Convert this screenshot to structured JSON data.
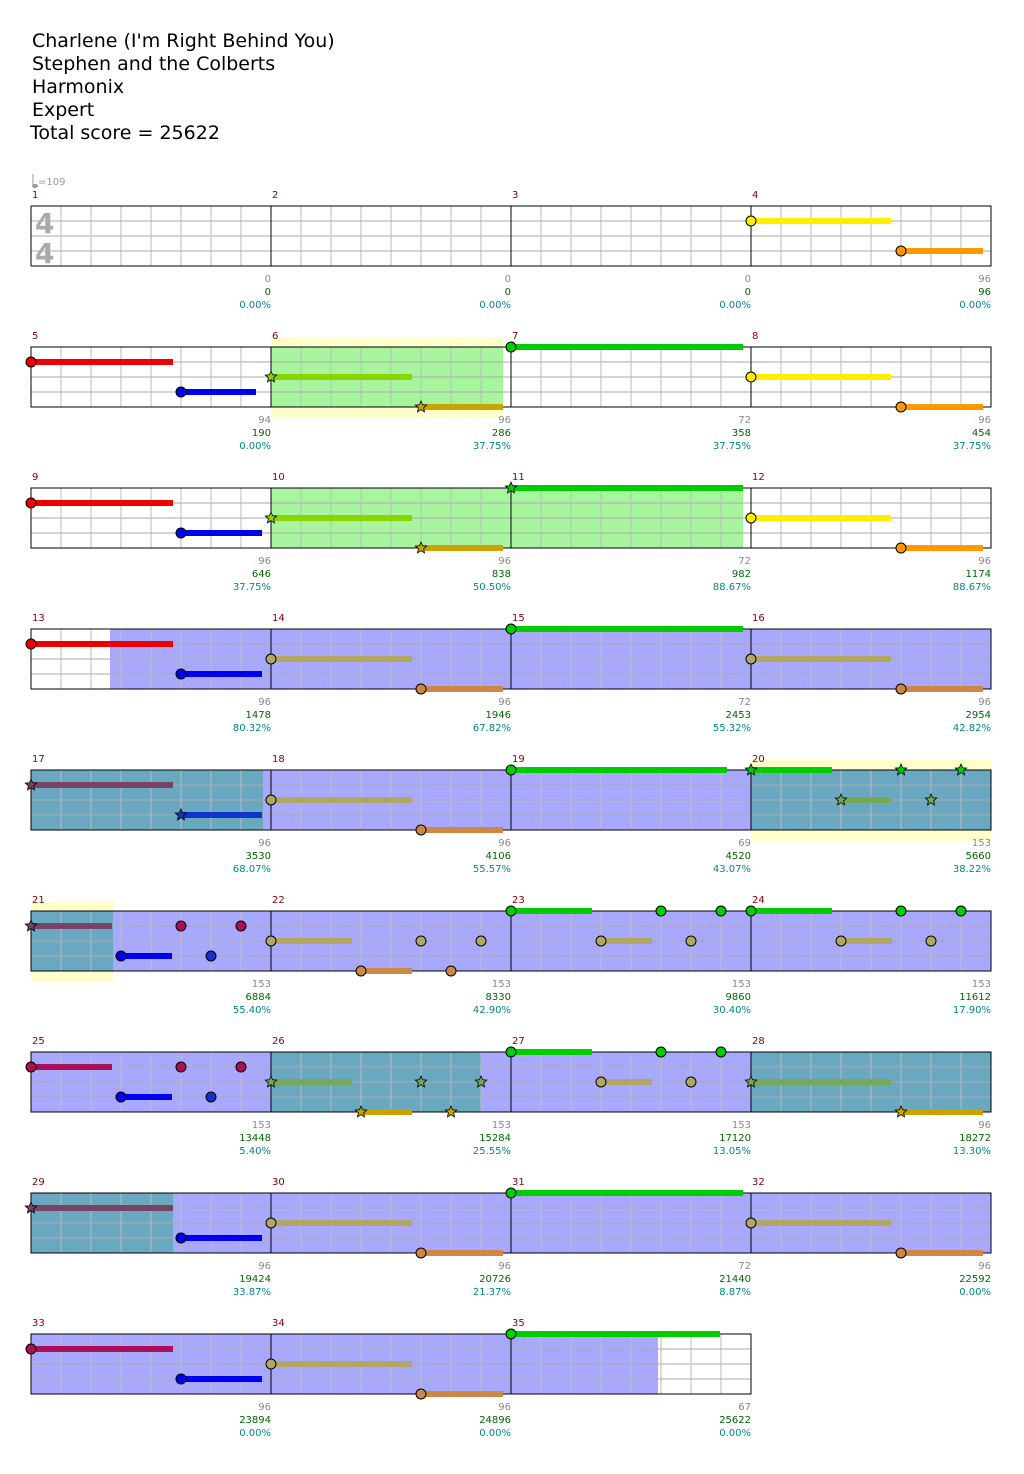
{
  "header": {
    "song": "Charlene (I'm Right Behind You)",
    "artist": "Stephen and the Colberts",
    "charter": "Harmonix",
    "difficulty": "Expert",
    "total_score": "Total score = 25622"
  },
  "tempo": "=109",
  "time_signature": {
    "top": "4",
    "bottom": "4"
  },
  "colors": {
    "green": "#00cc00",
    "red": "#ee0000",
    "yellow": "#ffee00",
    "blue": "#0000ee",
    "orange": "#ff9900",
    "overdrive": "#8bd400",
    "sp_phrase": "#a8f5a0",
    "sp_active": "#a8a8ff",
    "sp_both": "#6aa7c0",
    "measure_num": "#880000",
    "score_num": "#006600",
    "pct": "#008888",
    "beat_count": "#888888"
  },
  "chart_data": {
    "type": "table",
    "title": "Charlene (I'm Right Behind You)",
    "rows": [
      {
        "measures": [
          "1",
          "2",
          "3",
          "4"
        ],
        "beats": [
          "0",
          "0",
          "0",
          "96"
        ],
        "scores": [
          "0",
          "0",
          "0",
          "96"
        ],
        "pcts": [
          "0.00%",
          "0.00%",
          "0.00%",
          "0.00%"
        ]
      },
      {
        "measures": [
          "5",
          "6",
          "7",
          "8"
        ],
        "beats": [
          "94",
          "96",
          "72",
          "96"
        ],
        "scores": [
          "190",
          "286",
          "358",
          "454"
        ],
        "pcts": [
          "0.00%",
          "37.75%",
          "37.75%",
          "37.75%"
        ]
      },
      {
        "measures": [
          "9",
          "10",
          "11",
          "12"
        ],
        "beats": [
          "96",
          "96",
          "72",
          "96"
        ],
        "scores": [
          "646",
          "838",
          "982",
          "1174"
        ],
        "pcts": [
          "37.75%",
          "50.50%",
          "88.67%",
          "88.67%"
        ]
      },
      {
        "measures": [
          "13",
          "14",
          "15",
          "16"
        ],
        "beats": [
          "96",
          "96",
          "72",
          "96"
        ],
        "scores": [
          "1478",
          "1946",
          "2453",
          "2954"
        ],
        "pcts": [
          "80.32%",
          "67.82%",
          "55.32%",
          "42.82%"
        ]
      },
      {
        "measures": [
          "17",
          "18",
          "19",
          "20"
        ],
        "beats": [
          "96",
          "96",
          "69",
          "153"
        ],
        "scores": [
          "3530",
          "4106",
          "4520",
          "5660"
        ],
        "pcts": [
          "68.07%",
          "55.57%",
          "43.07%",
          "38.22%"
        ]
      },
      {
        "measures": [
          "21",
          "22",
          "23",
          "24"
        ],
        "beats": [
          "153",
          "153",
          "153",
          "153"
        ],
        "scores": [
          "6884",
          "8330",
          "9860",
          "11612"
        ],
        "pcts": [
          "55.40%",
          "42.90%",
          "30.40%",
          "17.90%"
        ]
      },
      {
        "measures": [
          "25",
          "26",
          "27",
          "28"
        ],
        "beats": [
          "153",
          "153",
          "153",
          "96"
        ],
        "scores": [
          "13448",
          "15284",
          "17120",
          "18272"
        ],
        "pcts": [
          "5.40%",
          "25.55%",
          "13.05%",
          "13.30%"
        ]
      },
      {
        "measures": [
          "29",
          "30",
          "31",
          "32"
        ],
        "beats": [
          "96",
          "96",
          "72",
          "96"
        ],
        "scores": [
          "19424",
          "20726",
          "21440",
          "22592"
        ],
        "pcts": [
          "33.87%",
          "21.37%",
          "8.87%",
          "0.00%"
        ]
      },
      {
        "measures": [
          "33",
          "34",
          "35"
        ],
        "beats": [
          "96",
          "96",
          "67"
        ],
        "scores": [
          "23894",
          "24896",
          "25622"
        ],
        "pcts": [
          "0.00%",
          "0.00%",
          "0.00%"
        ]
      }
    ]
  }
}
